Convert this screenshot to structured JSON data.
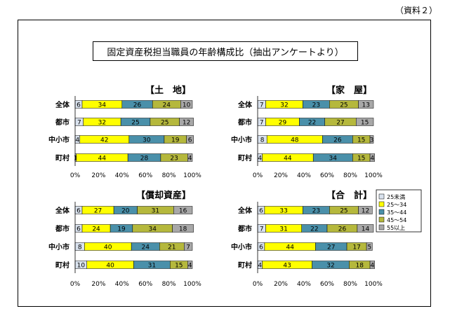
{
  "page_label": "（資料２）",
  "main_title": "固定資産税担当職員の年齢構成比（抽出アンケートより）",
  "colors": [
    "#d9e2ee",
    "#ffff00",
    "#4a90aa",
    "#b5b83c",
    "#a8a8a8"
  ],
  "chart_data": [
    {
      "type": "bar",
      "stacked": "percent",
      "orientation": "horizontal",
      "title": "【土　地】",
      "categories": [
        "全体",
        "都市",
        "中小市",
        "町村"
      ],
      "series": [
        {
          "name": "25未満",
          "values": [
            6,
            7,
            4,
            1
          ]
        },
        {
          "name": "25～34",
          "values": [
            34,
            32,
            42,
            44
          ]
        },
        {
          "name": "35～44",
          "values": [
            26,
            25,
            30,
            28
          ]
        },
        {
          "name": "45～54",
          "values": [
            24,
            25,
            19,
            23
          ]
        },
        {
          "name": "55以上",
          "values": [
            10,
            12,
            6,
            4
          ]
        }
      ],
      "xticks": [
        "0%",
        "20%",
        "40%",
        "60%",
        "80%",
        "100%"
      ],
      "xlim": [
        0,
        100
      ]
    },
    {
      "type": "bar",
      "stacked": "percent",
      "orientation": "horizontal",
      "title": "【家　屋】",
      "categories": [
        "全体",
        "都市",
        "中小市",
        "町村"
      ],
      "series": [
        {
          "name": "25未満",
          "values": [
            7,
            7,
            8,
            4
          ]
        },
        {
          "name": "25～34",
          "values": [
            32,
            29,
            48,
            44
          ]
        },
        {
          "name": "35～44",
          "values": [
            23,
            22,
            26,
            34
          ]
        },
        {
          "name": "45～54",
          "values": [
            25,
            27,
            15,
            15
          ]
        },
        {
          "name": "55以上",
          "values": [
            13,
            15,
            3,
            4
          ]
        }
      ],
      "xticks": [
        "0%",
        "20%",
        "40%",
        "60%",
        "80%",
        "100%"
      ],
      "xlim": [
        0,
        100
      ]
    },
    {
      "type": "bar",
      "stacked": "percent",
      "orientation": "horizontal",
      "title": "【償却資産】",
      "categories": [
        "全体",
        "都市",
        "中小市",
        "町村"
      ],
      "series": [
        {
          "name": "25未満",
          "values": [
            6,
            6,
            8,
            10
          ]
        },
        {
          "name": "25～34",
          "values": [
            27,
            24,
            40,
            40
          ]
        },
        {
          "name": "35～44",
          "values": [
            20,
            19,
            24,
            31
          ]
        },
        {
          "name": "45～54",
          "values": [
            31,
            34,
            21,
            15
          ]
        },
        {
          "name": "55以上",
          "values": [
            16,
            18,
            7,
            4
          ]
        }
      ],
      "xticks": [
        "0%",
        "20%",
        "40%",
        "60%",
        "80%",
        "100%"
      ],
      "xlim": [
        0,
        100
      ]
    },
    {
      "type": "bar",
      "stacked": "percent",
      "orientation": "horizontal",
      "title": "【合　計】",
      "categories": [
        "全体",
        "都市",
        "中小市",
        "町村"
      ],
      "series": [
        {
          "name": "25未満",
          "values": [
            6,
            7,
            6,
            4
          ]
        },
        {
          "name": "25～34",
          "values": [
            33,
            31,
            44,
            43
          ]
        },
        {
          "name": "35～44",
          "values": [
            23,
            22,
            27,
            32
          ]
        },
        {
          "name": "45～54",
          "values": [
            25,
            26,
            17,
            18
          ]
        },
        {
          "name": "55以上",
          "values": [
            12,
            14,
            5,
            4
          ]
        }
      ],
      "xticks": [
        "0%",
        "20%",
        "40%",
        "60%",
        "80%",
        "100%"
      ],
      "xlim": [
        0,
        100
      ]
    }
  ],
  "legend": {
    "placement": "right-of-合計",
    "items": [
      "25未満",
      "25～34",
      "35～44",
      "45～54",
      "55以上"
    ]
  }
}
